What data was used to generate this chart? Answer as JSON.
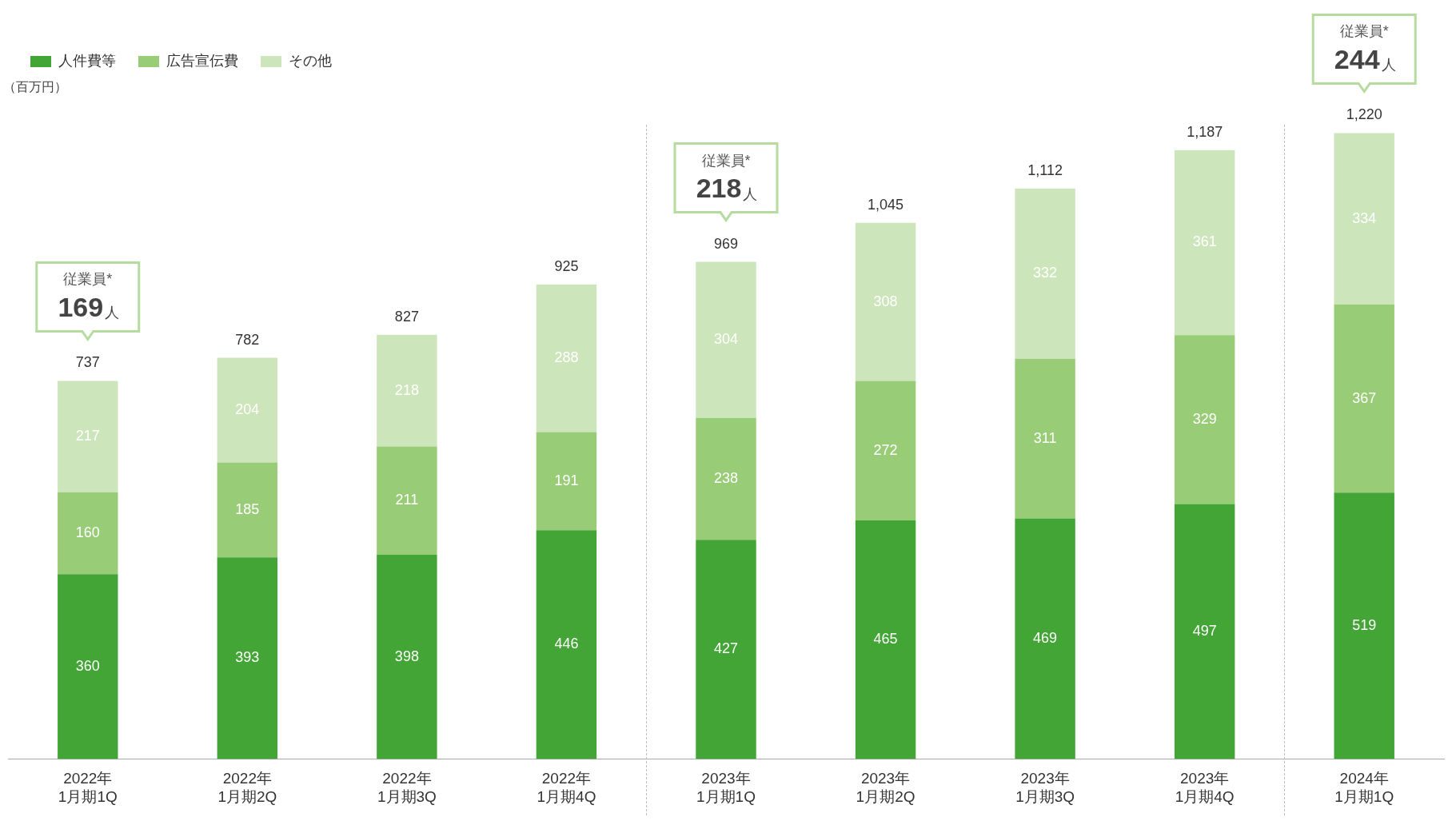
{
  "chart_data": {
    "type": "bar",
    "stacked": true,
    "ylabel": "（百万円）",
    "legend": "top left",
    "grid": false,
    "data_labels": true,
    "categories": [
      "2022年\n1月期1Q",
      "2022年\n1月期2Q",
      "2022年\n1月期3Q",
      "2022年\n1月期4Q",
      "2023年\n1月期1Q",
      "2023年\n1月期2Q",
      "2023年\n1月期3Q",
      "2023年\n1月期4Q",
      "2024年\n1月期1Q"
    ],
    "series": [
      {
        "name": "人件費等",
        "color": "#43a536",
        "values": [
          360,
          393,
          398,
          446,
          427,
          465,
          469,
          497,
          519
        ]
      },
      {
        "name": "広告宣伝費",
        "color": "#99cc77",
        "values": [
          160,
          185,
          211,
          191,
          238,
          272,
          311,
          329,
          367
        ]
      },
      {
        "name": "その他",
        "color": "#cde5bb",
        "values": [
          217,
          204,
          218,
          288,
          304,
          308,
          332,
          361,
          334
        ]
      }
    ],
    "totals": [
      "737",
      "782",
      "827",
      "925",
      "969",
      "1,045",
      "1,112",
      "1,187",
      "1,220"
    ],
    "annotations": [
      {
        "text": "従業員*\n169人",
        "x": "2022年\n1月期1Q",
        "y": 737
      },
      {
        "text": "従業員*\n218人",
        "x": "2023年\n1月期1Q",
        "y": 969
      },
      {
        "text": "従業員*\n244人",
        "x": "2024年\n1月期1Q",
        "y": 1220
      }
    ]
  }
}
